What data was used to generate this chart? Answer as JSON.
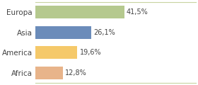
{
  "categories": [
    "Europa",
    "Asia",
    "America",
    "Africa"
  ],
  "values": [
    41.5,
    26.1,
    19.6,
    12.8
  ],
  "labels": [
    "41,5%",
    "26,1%",
    "19,6%",
    "12,8%"
  ],
  "bar_colors": [
    "#b5c98e",
    "#6b8cba",
    "#f5c96a",
    "#e8b48a"
  ],
  "background_color": "#ffffff",
  "plot_bg_color": "#f7f7f2",
  "bar_height": 0.62,
  "xlim": [
    0,
    75
  ],
  "label_fontsize": 7,
  "tick_fontsize": 7.5
}
